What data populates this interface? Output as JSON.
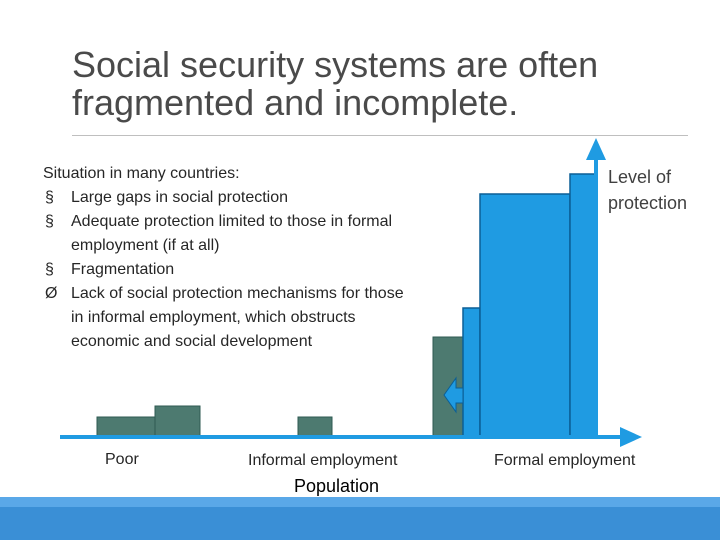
{
  "slide": {
    "title": "Social security systems are often fragmented and incomplete."
  },
  "bullets": {
    "intro": "Situation in many countries:",
    "items": [
      {
        "marker": "§",
        "text": "Large gaps in social protection"
      },
      {
        "marker": "§",
        "text": "Adequate protection limited to those in formal employment (if at all)"
      },
      {
        "marker": "§",
        "text": "Fragmentation"
      },
      {
        "marker": "Ø",
        "text": "Lack of social protection mechanisms for those in informal employment, which obstructs  economic and social development"
      }
    ]
  },
  "diagram": {
    "x_labels": {
      "poor": "Poor",
      "informal": "Informal employment",
      "formal": "Formal employment"
    },
    "x_axis_title": "Population",
    "y_axis_title": "Level of protection",
    "colors": {
      "informal_blocks": "#4d7a70",
      "formal_blocks": "#1f9be2",
      "axis": "#1f9be2",
      "footer": "#3a8fd6"
    }
  }
}
